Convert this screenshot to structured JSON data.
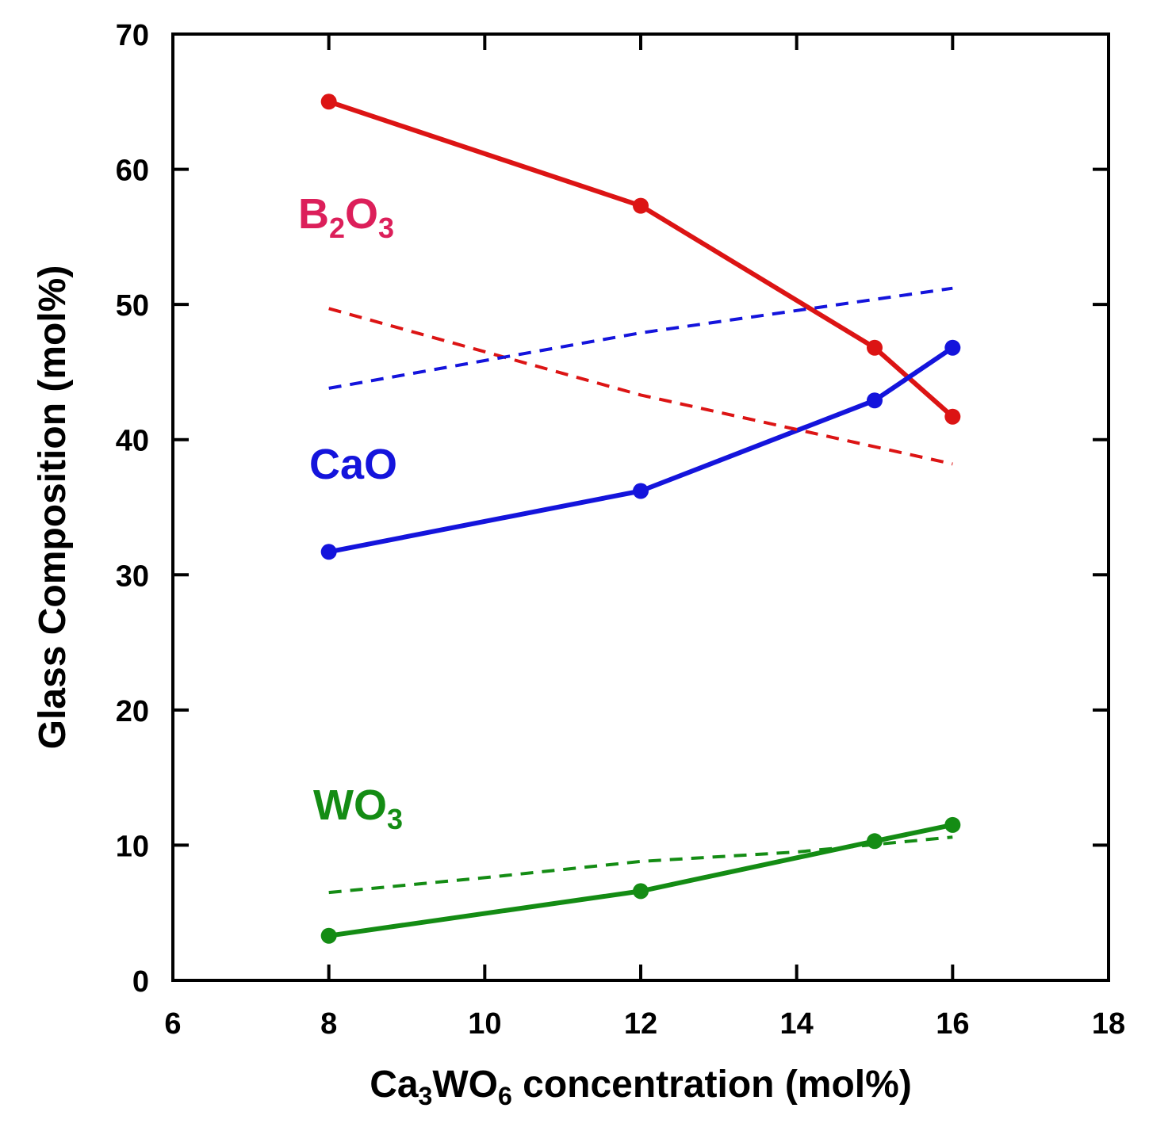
{
  "chart_data": {
    "type": "line",
    "title": "",
    "xlabel": {
      "prefix": "Ca",
      "sub1": "3",
      "mid": "WO",
      "sub2": "6",
      "suffix": " concentration (mol%)"
    },
    "ylabel": "Glass Composition (mol%)",
    "xlim": [
      6,
      18
    ],
    "ylim": [
      0,
      70
    ],
    "xticks": [
      6,
      8,
      10,
      12,
      14,
      16,
      18
    ],
    "yticks": [
      0,
      10,
      20,
      30,
      40,
      50,
      60,
      70
    ],
    "grid": false,
    "series": [
      {
        "name": "B2O3",
        "label": {
          "base": "B",
          "sub1": "2",
          "mid": "O",
          "sub2": "3"
        },
        "color": "#dc1414",
        "label_color": "#dc1f5a",
        "style": "solid",
        "markers": true,
        "x": [
          8,
          12,
          15,
          16
        ],
        "values": [
          65.0,
          57.3,
          46.8,
          41.7
        ]
      },
      {
        "name": "CaO",
        "label": {
          "base": "CaO"
        },
        "color": "#1414dc",
        "label_color": "#1414dc",
        "style": "solid",
        "markers": true,
        "x": [
          8,
          12,
          15,
          16
        ],
        "values": [
          31.7,
          36.2,
          42.9,
          46.8
        ]
      },
      {
        "name": "WO3",
        "label": {
          "base": "WO",
          "sub1": "3"
        },
        "color": "#148c14",
        "label_color": "#148c14",
        "style": "solid",
        "markers": true,
        "x": [
          8,
          12,
          15,
          16
        ],
        "values": [
          3.3,
          6.6,
          10.3,
          11.5
        ]
      },
      {
        "name": "B2O3 (dashed)",
        "color": "#dc1414",
        "style": "dashed",
        "markers": false,
        "x": [
          8,
          12,
          16
        ],
        "values": [
          49.7,
          43.3,
          38.2
        ]
      },
      {
        "name": "CaO (dashed)",
        "color": "#1414dc",
        "style": "dashed",
        "markers": false,
        "x": [
          8,
          12,
          16
        ],
        "values": [
          43.8,
          47.9,
          51.2
        ]
      },
      {
        "name": "WO3 (dashed)",
        "color": "#148c14",
        "style": "dashed",
        "markers": false,
        "x": [
          8,
          10,
          12,
          14,
          16
        ],
        "values": [
          6.5,
          7.6,
          8.8,
          9.5,
          10.6
        ]
      }
    ]
  }
}
